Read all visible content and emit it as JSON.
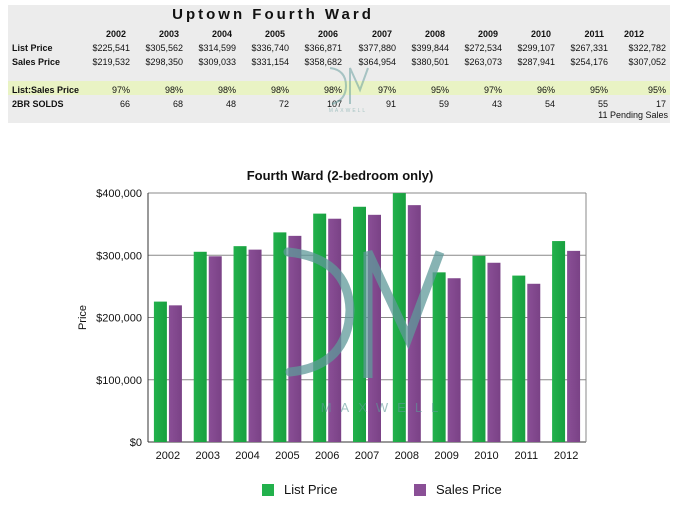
{
  "table": {
    "title": "Uptown Fourth Ward",
    "years": [
      "2002",
      "2003",
      "2004",
      "2005",
      "2006",
      "2007",
      "2008",
      "2009",
      "2010",
      "2011",
      "2012"
    ],
    "rows": [
      {
        "label": "List Price",
        "values": [
          "$225,541",
          "$305,562",
          "$314,599",
          "$336,740",
          "$366,871",
          "$377,880",
          "$399,844",
          "$272,534",
          "$299,107",
          "$267,331",
          "$322,782"
        ]
      },
      {
        "label": "Sales Price",
        "values": [
          "$219,532",
          "$298,350",
          "$309,033",
          "$331,154",
          "$358,682",
          "$364,954",
          "$380,501",
          "$263,073",
          "$287,941",
          "$254,176",
          "$307,052"
        ]
      },
      {
        "label": "List:Sales Price",
        "values": [
          "97%",
          "98%",
          "98%",
          "98%",
          "98%",
          "97%",
          "95%",
          "97%",
          "96%",
          "95%",
          "95%"
        ]
      },
      {
        "label": "2BR SOLDS",
        "values": [
          "66",
          "68",
          "48",
          "72",
          "107",
          "91",
          "59",
          "43",
          "54",
          "55",
          "17"
        ]
      }
    ],
    "pending_note": "11 Pending Sales"
  },
  "watermark": {
    "text": "MAXWELL",
    "color": "#5f9a99"
  },
  "chart_data": {
    "type": "bar",
    "title": "Fourth Ward (2-bedroom only)",
    "xlabel": "",
    "ylabel": "Price",
    "categories": [
      "2002",
      "2003",
      "2004",
      "2005",
      "2006",
      "2007",
      "2008",
      "2009",
      "2010",
      "2011",
      "2012"
    ],
    "series": [
      {
        "name": "List Price",
        "color": "#22b14c",
        "values": [
          225541,
          305562,
          314599,
          336740,
          366871,
          377880,
          399844,
          272534,
          299107,
          267331,
          322782
        ]
      },
      {
        "name": "Sales Price",
        "color": "#8a4f96",
        "values": [
          219532,
          298350,
          309033,
          331154,
          358682,
          364954,
          380501,
          263073,
          287941,
          254176,
          307052
        ]
      }
    ],
    "ylim": [
      0,
      400000
    ],
    "yticks": [
      0,
      100000,
      200000,
      300000,
      400000
    ],
    "ytick_labels": [
      "$0",
      "$100,000",
      "$200,000",
      "$300,000",
      "$400,000"
    ],
    "grid": true,
    "legend": "bottom"
  }
}
